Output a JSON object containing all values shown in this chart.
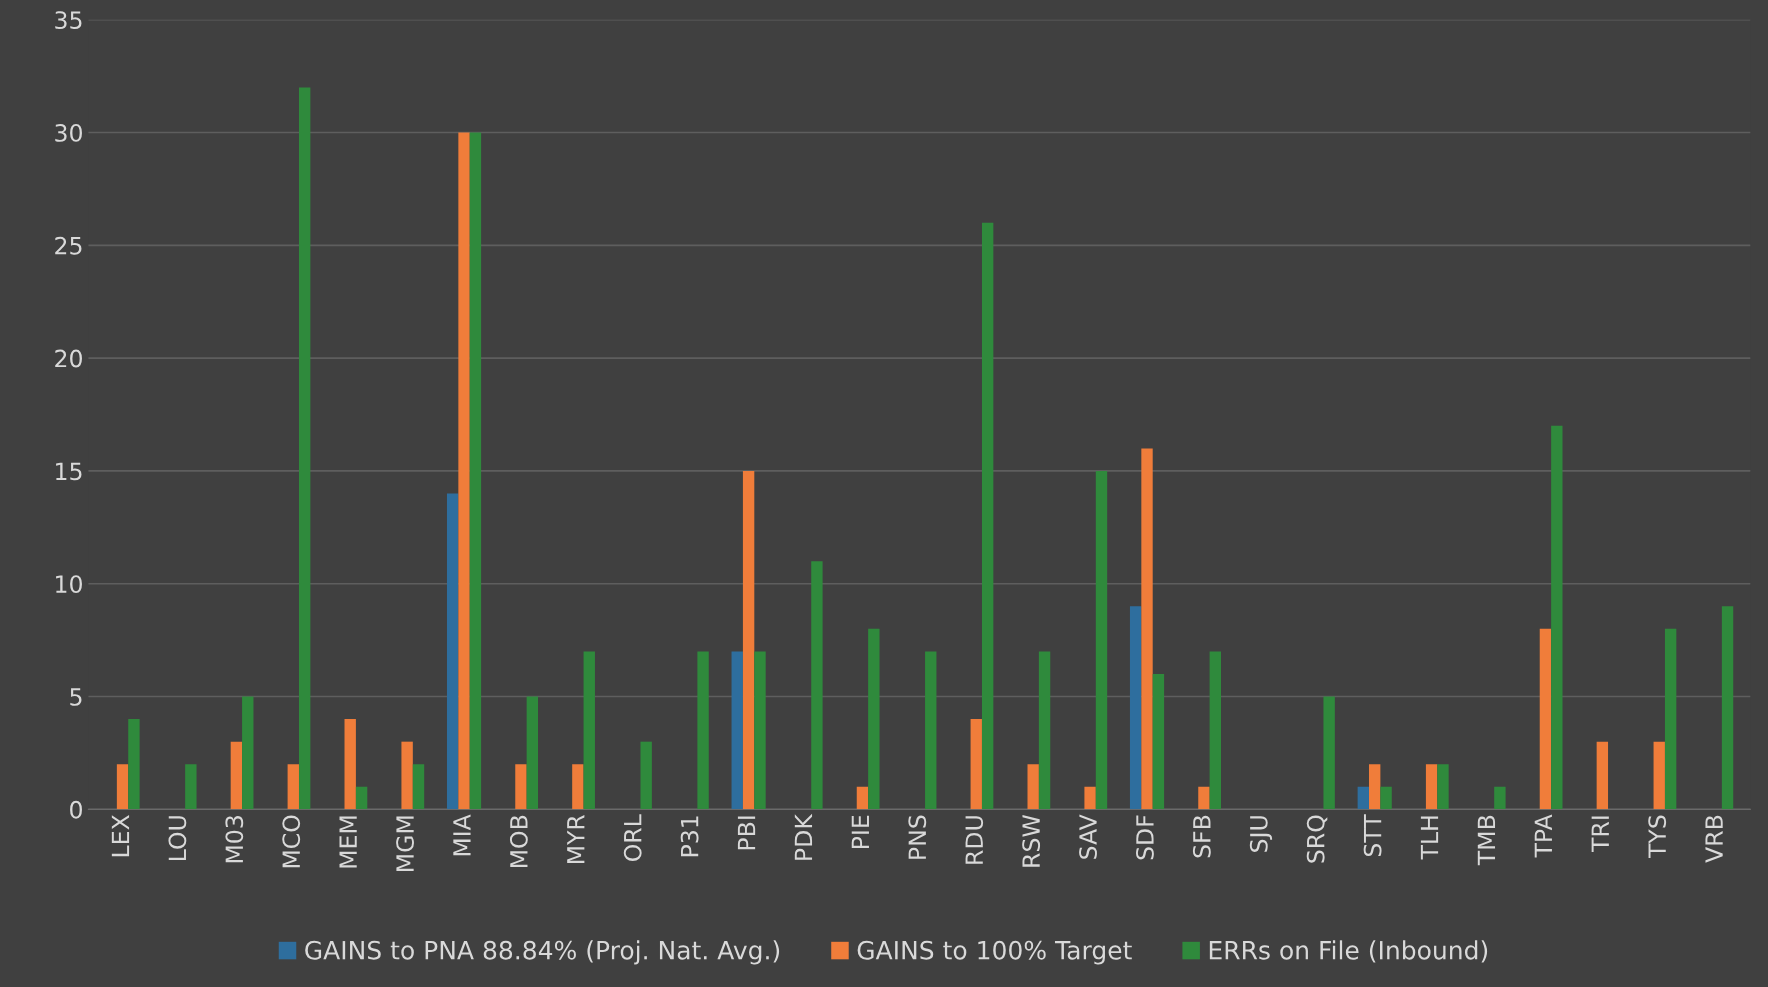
{
  "chart_data": {
    "type": "bar",
    "categories": [
      "LEX",
      "LOU",
      "M03",
      "MCO",
      "MEM",
      "MGM",
      "MIA",
      "MOB",
      "MYR",
      "ORL",
      "P31",
      "PBI",
      "PDK",
      "PIE",
      "PNS",
      "RDU",
      "RSW",
      "SAV",
      "SDF",
      "SFB",
      "SJU",
      "SRQ",
      "STT",
      "TLH",
      "TMB",
      "TPA",
      "TRI",
      "TYS",
      "VRB"
    ],
    "series": [
      {
        "name": "GAINS to PNA 88.84% (Proj. Nat. Avg.)",
        "color": "#2e6e9e",
        "values": [
          0,
          0,
          0,
          0,
          0,
          0,
          14,
          0,
          0,
          0,
          0,
          7,
          0,
          0,
          0,
          0,
          0,
          0,
          9,
          0,
          0,
          0,
          1,
          0,
          0,
          0,
          0,
          0,
          0
        ]
      },
      {
        "name": "GAINS to 100% Target",
        "color": "#f07d3a",
        "values": [
          2,
          0,
          3,
          2,
          4,
          3,
          30,
          2,
          2,
          0,
          0,
          15,
          0,
          1,
          0,
          4,
          2,
          1,
          16,
          1,
          0,
          0,
          2,
          2,
          0,
          8,
          3,
          3,
          0
        ]
      },
      {
        "name": "ERRs on File (Inbound)",
        "color": "#2f8a3c",
        "values": [
          4,
          2,
          5,
          32,
          1,
          2,
          30,
          5,
          7,
          3,
          7,
          7,
          11,
          8,
          7,
          26,
          7,
          15,
          6,
          7,
          0,
          5,
          1,
          2,
          1,
          17,
          0,
          8,
          9
        ]
      }
    ],
    "ylim": [
      0,
      35
    ],
    "yticks": [
      0,
      5,
      10,
      15,
      20,
      25,
      30,
      35
    ],
    "grid": "y",
    "legend": "bottom"
  }
}
